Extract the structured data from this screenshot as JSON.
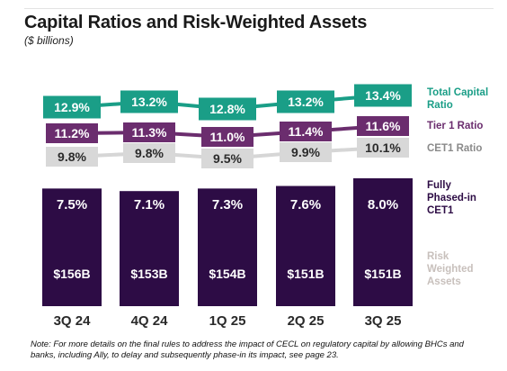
{
  "title": "Capital Ratios and Risk-Weighted Assets",
  "subtitle": "($ billions)",
  "note": "Note: For more details on the final rules to address the impact of CECL on regulatory capital by allowing BHCs and banks, including Ally, to delay and subsequently phase-in its impact, see page 23.",
  "colors": {
    "bar": "#2d0c45",
    "total_capital": "#1a9e87",
    "tier1": "#6b2d6e",
    "cet1": "#d8d8d8",
    "rwa_label": "#c8c0bc"
  },
  "chart_data": {
    "type": "bar",
    "categories": [
      "3Q 24",
      "4Q 24",
      "1Q 25",
      "2Q 25",
      "3Q 25"
    ],
    "bar_heights": [
      0.92,
      0.9,
      0.92,
      0.94,
      1.0
    ],
    "series": [
      {
        "name": "Total Capital Ratio",
        "values": [
          12.9,
          13.2,
          12.8,
          13.2,
          13.4
        ],
        "labels": [
          "12.9%",
          "13.2%",
          "12.8%",
          "13.2%",
          "13.4%"
        ]
      },
      {
        "name": "Tier 1 Ratio",
        "values": [
          11.2,
          11.3,
          11.0,
          11.4,
          11.6
        ],
        "labels": [
          "11.2%",
          "11.3%",
          "11.0%",
          "11.4%",
          "11.6%"
        ]
      },
      {
        "name": "CET1 Ratio",
        "values": [
          9.8,
          9.8,
          9.5,
          9.9,
          10.1
        ],
        "labels": [
          "9.8%",
          "9.8%",
          "9.5%",
          "9.9%",
          "10.1%"
        ]
      },
      {
        "name": "Fully Phased-in CET1",
        "values": [
          7.5,
          7.1,
          7.3,
          7.6,
          8.0
        ],
        "labels": [
          "7.5%",
          "7.1%",
          "7.3%",
          "7.6%",
          "8.0%"
        ]
      },
      {
        "name": "Risk Weighted Assets",
        "values": [
          156,
          153,
          154,
          151,
          151
        ],
        "labels": [
          "$156B",
          "$153B",
          "$154B",
          "$151B",
          "$151B"
        ]
      }
    ],
    "legend": {
      "total_capital": [
        "Total Capital",
        "Ratio"
      ],
      "tier1": [
        "Tier 1 Ratio"
      ],
      "cet1": [
        "CET1 Ratio"
      ],
      "fully_phased": [
        "Fully",
        "Phased-in",
        "CET1"
      ],
      "rwa": [
        "Risk",
        "Weighted",
        "Assets"
      ]
    }
  }
}
